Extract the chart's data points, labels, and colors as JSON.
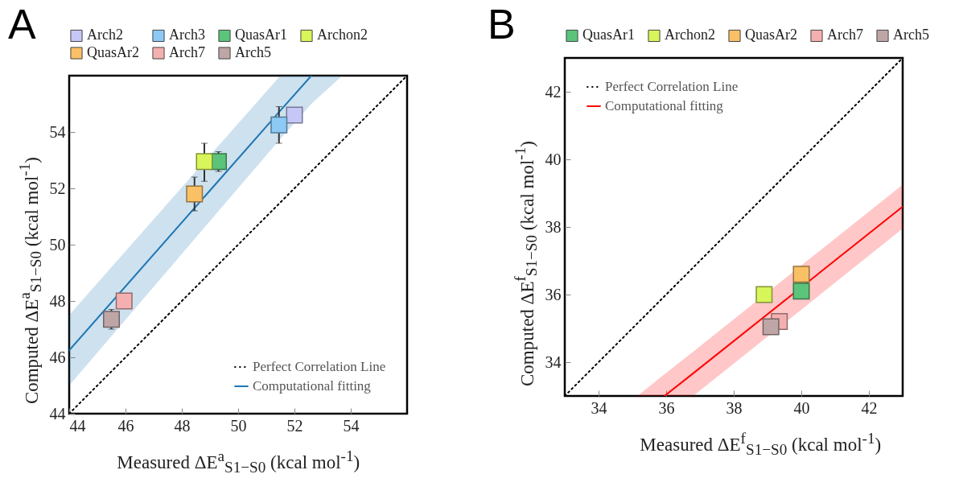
{
  "chart_data": [
    {
      "type": "scatter",
      "title": "A",
      "xlabel": "Measured  ΔE$^{a}$$_{S1−S0}$ (kcal  mol$^{-1}$)",
      "ylabel": "Computed  ΔE$^{a}$$_{S1−S0}$ (kcal  mol$^{-1}$)",
      "xlim": [
        44,
        56
      ],
      "ylim": [
        44,
        56
      ],
      "xticks": [
        44,
        46,
        48,
        50,
        52,
        54
      ],
      "yticks": [
        44,
        46,
        48,
        50,
        52,
        54
      ],
      "legend": "top",
      "marker": "square",
      "series": [
        {
          "name": "Arch2",
          "color": "#c6c6f7",
          "x": [
            52.0
          ],
          "values": [
            54.6
          ],
          "errors": [
            null
          ]
        },
        {
          "name": "Arch3",
          "color": "#8ccaf5",
          "x": [
            51.45
          ],
          "values": [
            54.25
          ],
          "errors": [
            [
              53.6,
              54.9
            ]
          ]
        },
        {
          "name": "QuasAr1",
          "color": "#5cc47a",
          "x": [
            49.3
          ],
          "values": [
            52.95
          ],
          "errors": [
            [
              52.6,
              53.3
            ]
          ]
        },
        {
          "name": "Archon2",
          "color": "#d8f55a",
          "x": [
            48.8
          ],
          "values": [
            52.95
          ],
          "errors": [
            [
              52.25,
              53.6
            ]
          ]
        },
        {
          "name": "QuasAr2",
          "color": "#f9c066",
          "x": [
            48.45
          ],
          "values": [
            51.8
          ],
          "errors": [
            [
              51.2,
              52.4
            ]
          ]
        },
        {
          "name": "Arch7",
          "color": "#f4b0b0",
          "x": [
            45.95
          ],
          "values": [
            48.0
          ],
          "errors": [
            null
          ]
        },
        {
          "name": "Arch5",
          "color": "#bfa6a6",
          "x": [
            45.5
          ],
          "values": [
            47.35
          ],
          "errors": [
            [
              47.0,
              47.7
            ]
          ]
        },
        {
          "name": "Perfect Correlation Line",
          "type": "line",
          "color": "#000000",
          "line_style": "dotted",
          "marker": "none",
          "x": [
            44,
            56
          ],
          "values": [
            44,
            56
          ]
        },
        {
          "name": "Computational fitting",
          "type": "line",
          "color": "#1f77b4",
          "line_style": "solid",
          "marker": "none",
          "x": [
            44,
            51.5,
            52.6,
            53.7
          ],
          "values": [
            46.25,
            54.76,
            56,
            null
          ],
          "lower": [
            45,
            53.76,
            55,
            56
          ],
          "upper": [
            47.5,
            56,
            56,
            56
          ]
        }
      ]
    },
    {
      "type": "scatter",
      "title": "B",
      "xlabel": "Measured  ΔE$^{f}$$_{S1−S0}$ (kcal  mol$^{-1}$)",
      "ylabel": "Computed  ΔE$^{f}$$_{S1−S0}$ (kcal  mol$^{-1}$)",
      "xlim": [
        33,
        43
      ],
      "ylim": [
        33,
        43
      ],
      "xticks": [
        34,
        36,
        38,
        40,
        42
      ],
      "yticks": [
        34,
        36,
        38,
        40,
        42
      ],
      "legend": "top",
      "marker": "square",
      "series": [
        {
          "name": "QuasAr1",
          "color": "#5cc47a",
          "x": [
            40.0
          ],
          "values": [
            36.1
          ]
        },
        {
          "name": "Archon2",
          "color": "#d8f55a",
          "x": [
            38.9
          ],
          "values": [
            36.0
          ]
        },
        {
          "name": "QuasAr2",
          "color": "#f9c066",
          "x": [
            40.0
          ],
          "values": [
            36.6
          ]
        },
        {
          "name": "Arch7",
          "color": "#f4b0b0",
          "x": [
            39.35
          ],
          "values": [
            35.2
          ]
        },
        {
          "name": "Arch5",
          "color": "#bfa6a6",
          "x": [
            39.1
          ],
          "values": [
            35.05
          ]
        },
        {
          "name": "Perfect Correlation Line",
          "type": "line",
          "color": "#000000",
          "line_style": "dotted",
          "marker": "none",
          "x": [
            33,
            43
          ],
          "values": [
            33,
            43
          ]
        },
        {
          "name": "Computational fitting",
          "type": "line",
          "color": "#ff0000",
          "line_style": "solid",
          "marker": "none",
          "x": [
            35.15,
            35.95,
            36.8,
            43
          ],
          "values": [
            null,
            33,
            33.67,
            38.6
          ],
          "lower": [
            33,
            33,
            33,
            37.95
          ],
          "upper": [
            33,
            33.64,
            34.31,
            39.25
          ]
        }
      ]
    }
  ]
}
